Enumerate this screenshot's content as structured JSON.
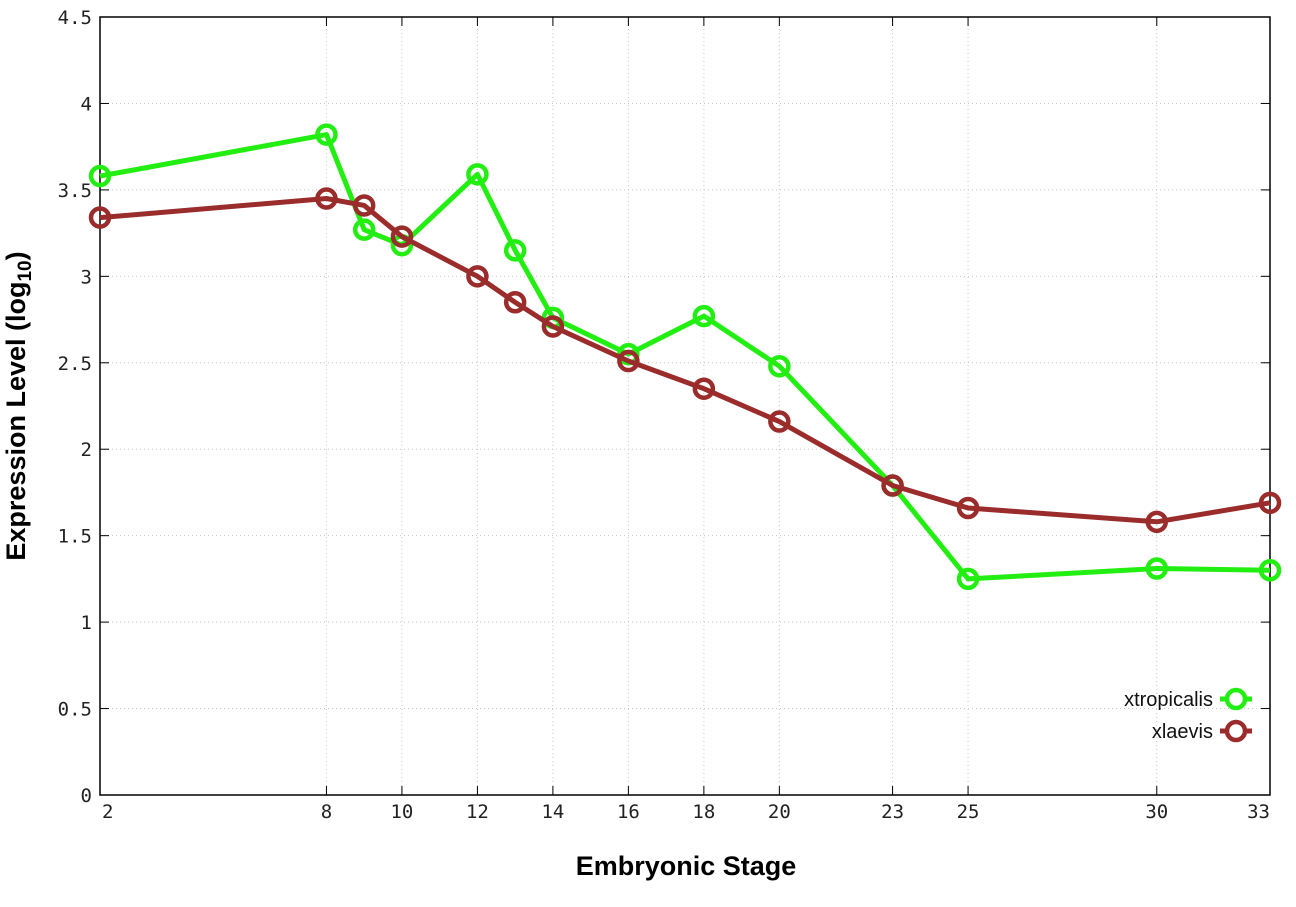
{
  "chart_data": {
    "type": "line",
    "title": "",
    "xlabel": "Embryonic Stage",
    "ylabel_main": "Expression Level (log",
    "ylabel_sub": "10",
    "ylabel_close": ")",
    "xlim": [
      2,
      33
    ],
    "ylim": [
      0,
      4.5
    ],
    "x_ticks": [
      2,
      8,
      10,
      12,
      14,
      16,
      18,
      20,
      23,
      25,
      30,
      33
    ],
    "y_ticks": [
      0,
      0.5,
      1,
      1.5,
      2,
      2.5,
      3,
      3.5,
      4,
      4.5
    ],
    "y_tick_labels": [
      "0",
      "0.5",
      "1",
      "1.5",
      "2",
      "2.5",
      "3",
      "3.5",
      "4",
      "4.5"
    ],
    "grid": true,
    "legend_position": "bottom-right",
    "series": [
      {
        "name": "xtropicalis",
        "color": "#22ee11",
        "x": [
          2,
          8,
          9,
          10,
          12,
          13,
          14,
          16,
          18,
          20,
          23,
          25,
          30,
          33
        ],
        "y": [
          3.58,
          3.82,
          3.27,
          3.18,
          3.59,
          3.15,
          2.76,
          2.55,
          2.77,
          2.48,
          1.79,
          1.25,
          1.31,
          1.3
        ]
      },
      {
        "name": "xlaevis",
        "color": "#9a2c2c",
        "x": [
          2,
          8,
          9,
          10,
          12,
          13,
          14,
          16,
          18,
          20,
          23,
          25,
          30,
          33
        ],
        "y": [
          3.34,
          3.45,
          3.41,
          3.23,
          3.0,
          2.85,
          2.71,
          2.51,
          2.35,
          2.16,
          1.79,
          1.66,
          1.58,
          1.69
        ]
      }
    ]
  }
}
